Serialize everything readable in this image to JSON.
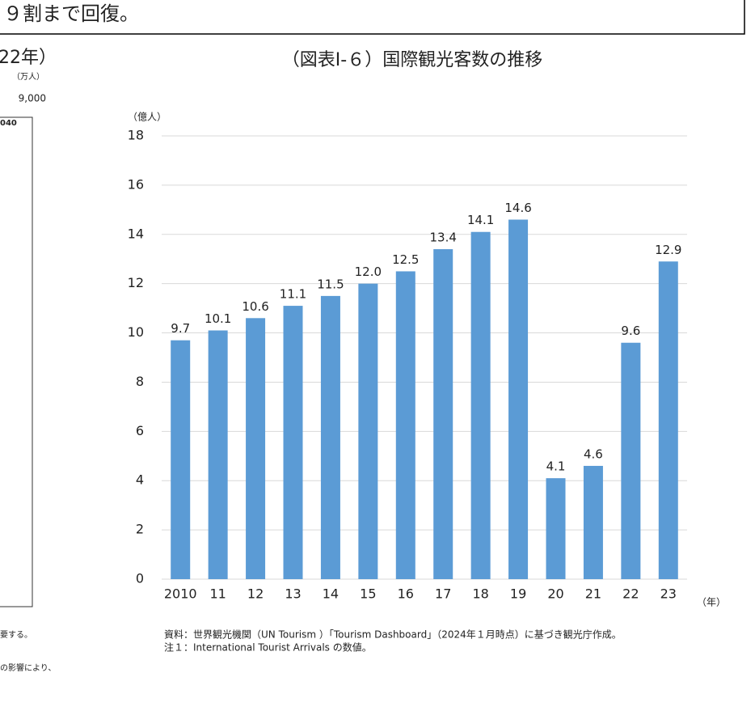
{
  "document": {
    "header": "９割まで回復。",
    "left_title": "22年）",
    "left_unit": "（万人）",
    "left_tick": "9,000",
    "left_label": "040",
    "left_note1": "要する。",
    "left_note2": "の影響により、"
  },
  "chart_data": {
    "type": "bar",
    "title": "（図表Ⅰ-６）国際観光客数の推移",
    "y_label": "（億人）",
    "x_label": "（年）",
    "categories": [
      "2010",
      "11",
      "12",
      "13",
      "14",
      "15",
      "16",
      "17",
      "18",
      "19",
      "20",
      "21",
      "22",
      "23"
    ],
    "values": [
      9.7,
      10.1,
      10.6,
      11.1,
      11.5,
      12.0,
      12.5,
      13.4,
      14.1,
      14.6,
      4.1,
      4.6,
      9.6,
      12.9
    ],
    "value_labels": [
      "9.7",
      "10.1",
      "10.6",
      "11.1",
      "11.5",
      "12.0",
      "12.5",
      "13.4",
      "14.1",
      "14.6",
      "4.1",
      "4.6",
      "9.6",
      "12.9"
    ],
    "color": "#5b9bd5",
    "ylim": [
      0,
      18
    ],
    "yticks": [
      0,
      2,
      4,
      6,
      8,
      10,
      12,
      14,
      16,
      18
    ],
    "grid": true,
    "notes": [
      "資料：世界観光機関（UN Tourism ）「Tourism Dashboard」（2024年１月時点）に基づき観光庁作成。",
      "注１：International Tourist Arrivals の数値。"
    ]
  }
}
